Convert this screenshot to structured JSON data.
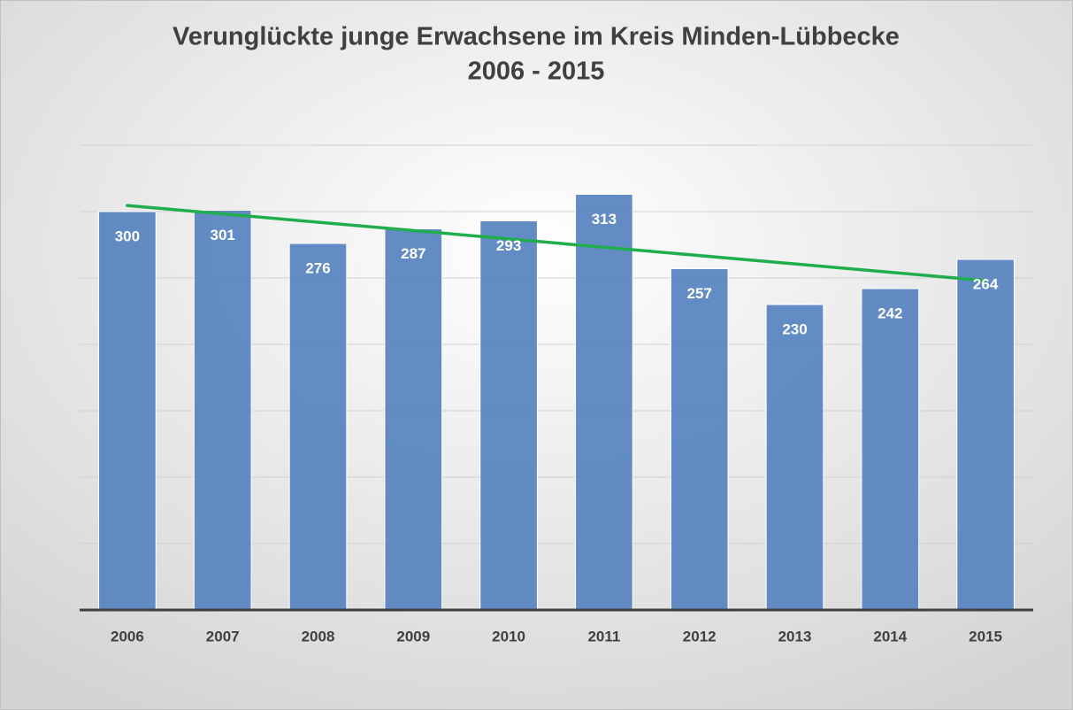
{
  "chart_data": {
    "type": "bar",
    "title": "Verunglückte junge Erwachsene im Kreis Minden-Lübbecke",
    "subtitle": "2006 - 2015",
    "categories": [
      "2006",
      "2007",
      "2008",
      "2009",
      "2010",
      "2011",
      "2012",
      "2013",
      "2014",
      "2015"
    ],
    "values": [
      300,
      301,
      276,
      287,
      293,
      313,
      257,
      230,
      242,
      264
    ],
    "color": "#5b86c1",
    "ylim": [
      0,
      350
    ],
    "yticks": [
      0,
      50,
      100,
      150,
      200,
      250,
      300,
      350
    ],
    "grid": true,
    "trendline": "linear",
    "trendline_color": "#1fae4b"
  }
}
